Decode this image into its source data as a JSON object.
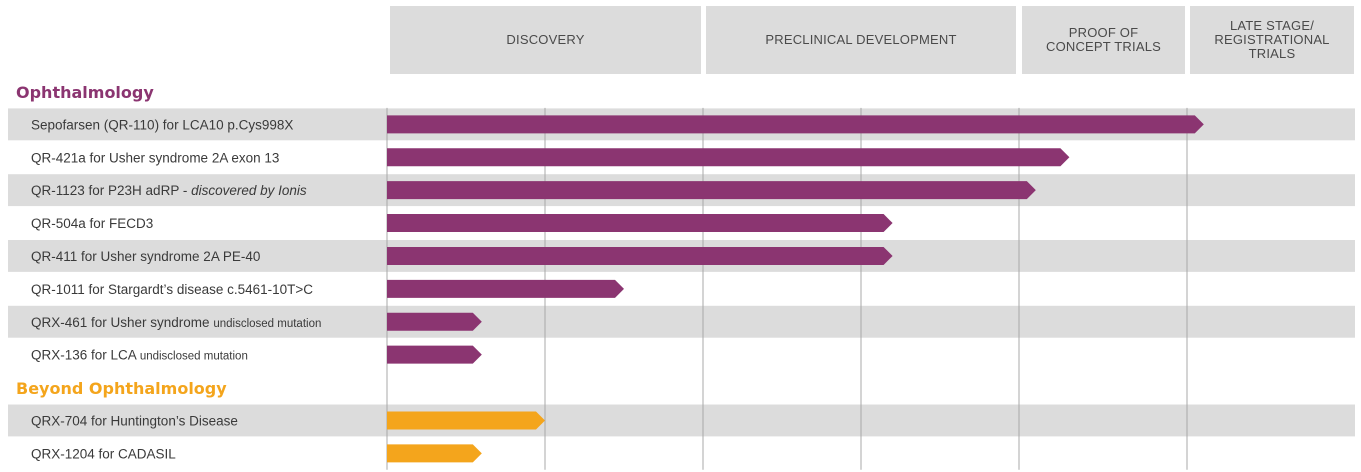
{
  "phases": [
    "DISCOVERY",
    "PRECLINICAL DEVELOPMENT",
    "PROOF OF\nCONCEPT TRIALS",
    "LATE STAGE/\nREGISTRATIONAL\nTRIALS"
  ],
  "colors": {
    "ophthalmology": "#8b3571",
    "beyond": "#f4a51c",
    "row_alt": "#dcdcdc",
    "grid": "#a8a8a8",
    "header_bg": "#dcdcdc"
  },
  "chart_data": {
    "type": "bar",
    "orientation": "horizontal",
    "value_unit": "development stages completed (0 = start of Discovery, 4 = end of Late Stage/Registrational Trials)",
    "xlim": [
      0,
      4
    ],
    "categories_axis": [
      "DISCOVERY",
      "PRECLINICAL DEVELOPMENT",
      "PROOF OF CONCEPT TRIALS",
      "LATE STAGE/ REGISTRATIONAL TRIALS"
    ],
    "groups": [
      {
        "name": "Ophthalmology",
        "color": "#8b3571",
        "programs": [
          {
            "label": "Sepofarsen (QR-110) for LCA10 p.Cys998X",
            "label_extra": "",
            "value": 3.1
          },
          {
            "label": "QR-421a for Usher syndrome 2A exon 13",
            "label_extra": "",
            "value": 2.3
          },
          {
            "label": "QR-1123 for P23H adRP - ",
            "label_extra": "discovered by Ionis",
            "value": 2.1
          },
          {
            "label": "QR-504a for FECD3",
            "label_extra": "",
            "value": 1.6
          },
          {
            "label": "QR-411 for Usher syndrome 2A PE-40",
            "label_extra": "",
            "value": 1.6
          },
          {
            "label": "QR-1011 for Stargardt’s disease c.5461-10T>C",
            "label_extra": "",
            "value": 0.75
          },
          {
            "label": "QRX-461 for Usher syndrome ",
            "label_extra": "undisclosed mutation",
            "value": 0.3
          },
          {
            "label": "QRX-136 for LCA ",
            "label_extra": "undisclosed mutation",
            "value": 0.3
          }
        ]
      },
      {
        "name": "Beyond Ophthalmology",
        "color": "#f4a51c",
        "programs": [
          {
            "label": "QRX-704 for Huntington’s Disease",
            "label_extra": "",
            "value": 0.5
          },
          {
            "label": "QRX-1204 for CADASIL",
            "label_extra": "",
            "value": 0.3
          }
        ]
      }
    ]
  }
}
